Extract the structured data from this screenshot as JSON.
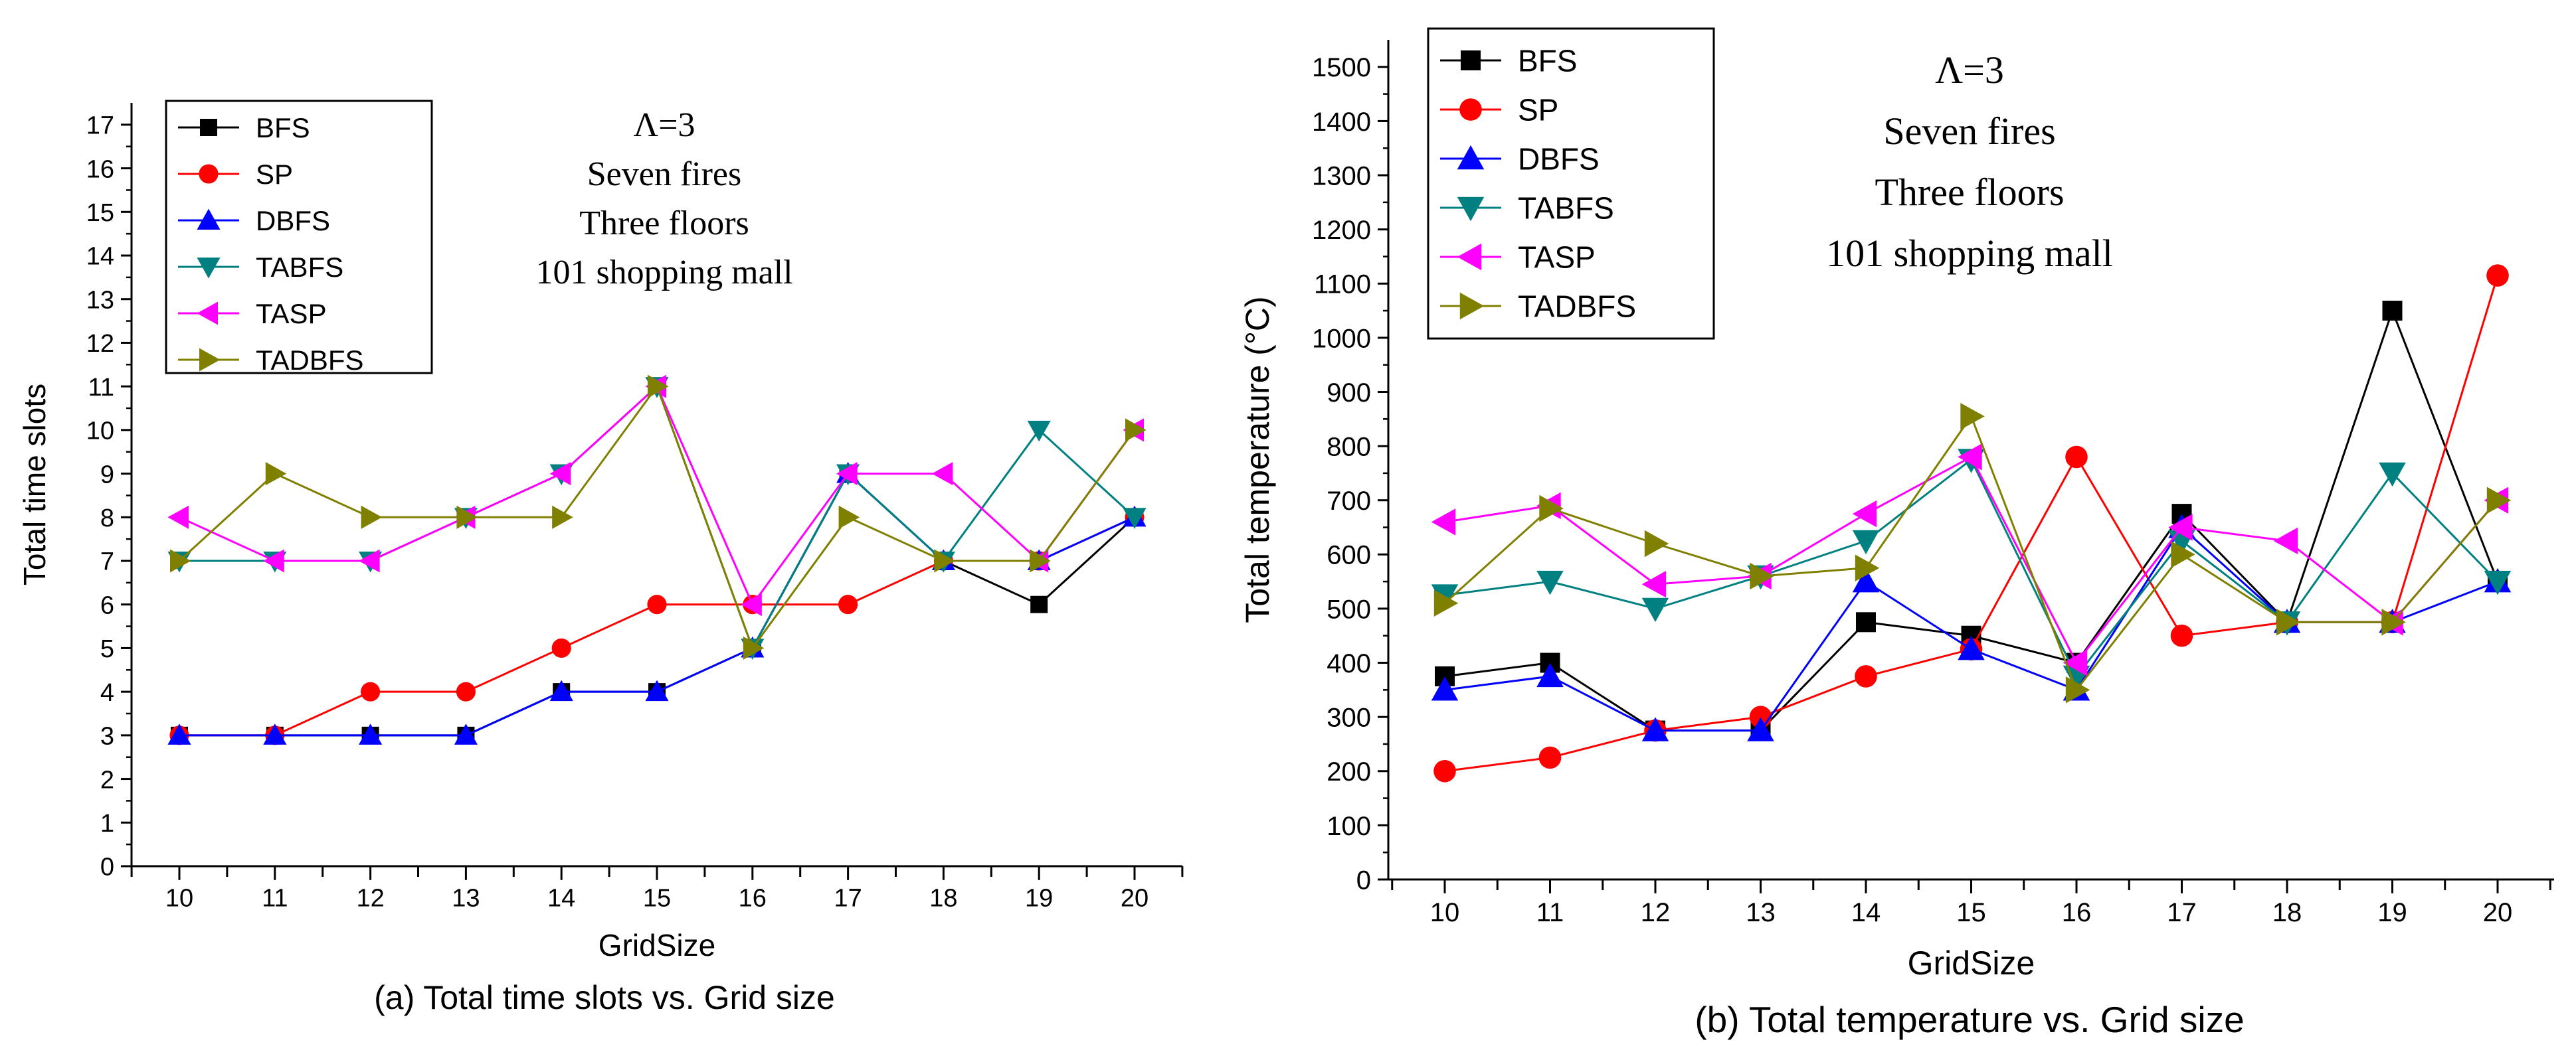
{
  "chart_data": [
    {
      "type": "line",
      "caption": "(a) Total time slots vs. Grid size",
      "xlabel": "GridSize",
      "ylabel": "Total time slots",
      "categories": [
        "10",
        "11",
        "12",
        "13",
        "14",
        "15",
        "16",
        "17",
        "18",
        "19",
        "20"
      ],
      "ylim": [
        0,
        17.5
      ],
      "yticks": [
        0,
        1,
        2,
        3,
        4,
        5,
        6,
        7,
        8,
        9,
        10,
        11,
        12,
        13,
        14,
        15,
        16,
        17
      ],
      "annotation": [
        "Λ=3",
        "Seven fires",
        "Three floors",
        "101 shopping mall"
      ],
      "legend_position": "top-left",
      "series": [
        {
          "name": "BFS",
          "color": "#000000",
          "marker": "square",
          "values": [
            3,
            3,
            3,
            3,
            4,
            4,
            5,
            9,
            7,
            6,
            8
          ]
        },
        {
          "name": "SP",
          "color": "#ff0000",
          "marker": "circle",
          "values": [
            3,
            3,
            4,
            4,
            5,
            6,
            6,
            6,
            7,
            7,
            8
          ]
        },
        {
          "name": "DBFS",
          "color": "#0000ff",
          "marker": "triangle-up",
          "values": [
            3,
            3,
            3,
            3,
            4,
            4,
            5,
            9,
            7,
            7,
            8
          ]
        },
        {
          "name": "TABFS",
          "color": "#008080",
          "marker": "triangle-down",
          "values": [
            7,
            7,
            7,
            8,
            9,
            11,
            5,
            9,
            7,
            10,
            8
          ]
        },
        {
          "name": "TASP",
          "color": "#ff00ff",
          "marker": "triangle-left",
          "values": [
            8,
            7,
            7,
            8,
            9,
            11,
            6,
            9,
            9,
            7,
            10
          ]
        },
        {
          "name": "TADBFS",
          "color": "#808000",
          "marker": "triangle-right",
          "values": [
            7,
            9,
            8,
            8,
            8,
            11,
            5,
            8,
            7,
            7,
            10
          ]
        }
      ]
    },
    {
      "type": "line",
      "caption": "(b) Total temperature vs. Grid size",
      "xlabel": "GridSize",
      "ylabel": "Total temperature (°C)",
      "categories": [
        "10",
        "11",
        "12",
        "13",
        "14",
        "15",
        "16",
        "17",
        "18",
        "19",
        "20"
      ],
      "ylim": [
        0,
        1550
      ],
      "yticks": [
        0,
        100,
        200,
        300,
        400,
        500,
        600,
        700,
        800,
        900,
        1000,
        1100,
        1200,
        1300,
        1400,
        1500
      ],
      "annotation": [
        "Λ=3",
        "Seven fires",
        "Three floors",
        "101 shopping mall"
      ],
      "legend_position": "top-left",
      "series": [
        {
          "name": "BFS",
          "color": "#000000",
          "marker": "square",
          "values": [
            375,
            400,
            275,
            275,
            475,
            450,
            400,
            675,
            475,
            1050,
            550
          ]
        },
        {
          "name": "SP",
          "color": "#ff0000",
          "marker": "circle",
          "values": [
            200,
            225,
            275,
            300,
            375,
            425,
            780,
            450,
            475,
            475,
            1115
          ]
        },
        {
          "name": "DBFS",
          "color": "#0000ff",
          "marker": "triangle-up",
          "values": [
            350,
            375,
            275,
            275,
            550,
            425,
            350,
            650,
            475,
            475,
            550
          ]
        },
        {
          "name": "TABFS",
          "color": "#008080",
          "marker": "triangle-down",
          "values": [
            525,
            550,
            500,
            560,
            625,
            775,
            375,
            625,
            475,
            750,
            550
          ]
        },
        {
          "name": "TASP",
          "color": "#ff00ff",
          "marker": "triangle-left",
          "values": [
            660,
            690,
            545,
            560,
            675,
            780,
            400,
            650,
            625,
            475,
            700
          ]
        },
        {
          "name": "TADBFS",
          "color": "#808000",
          "marker": "triangle-right",
          "values": [
            510,
            685,
            620,
            560,
            575,
            855,
            350,
            600,
            475,
            475,
            700
          ]
        }
      ]
    }
  ]
}
